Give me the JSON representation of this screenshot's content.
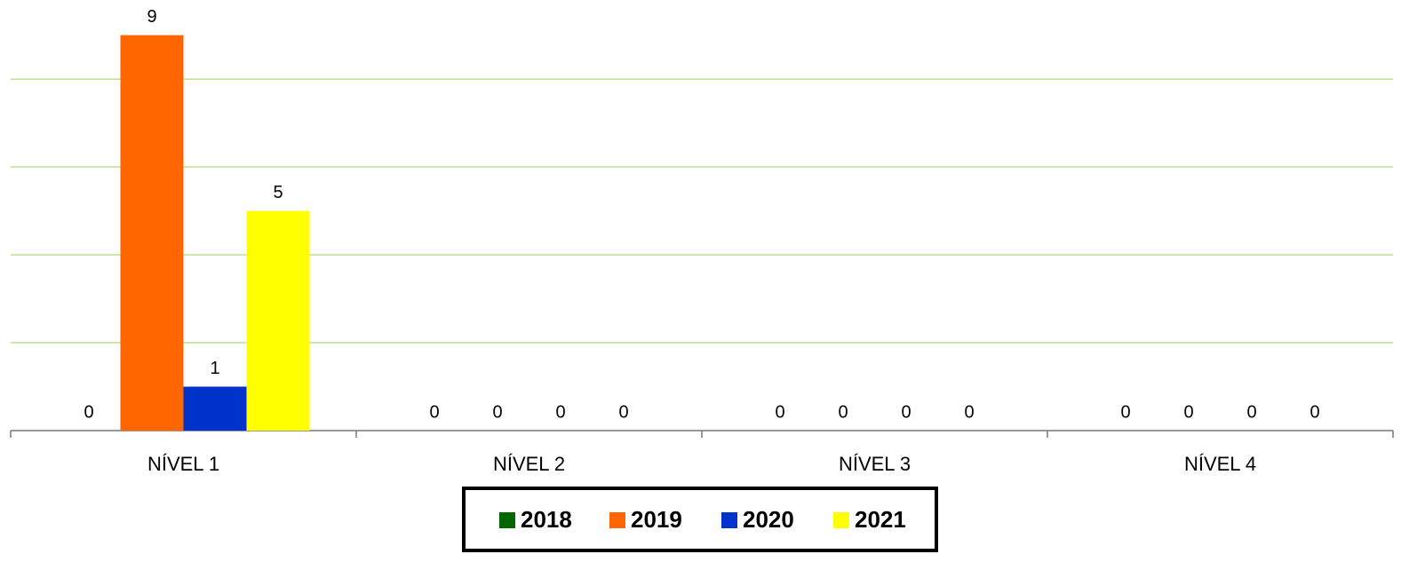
{
  "chart_data": {
    "type": "bar",
    "categories": [
      "NÍVEL 1",
      "NÍVEL 2",
      "NÍVEL 3",
      "NÍVEL 4"
    ],
    "series": [
      {
        "name": "2018",
        "color": "#006600",
        "values": [
          0,
          0,
          0,
          0
        ]
      },
      {
        "name": "2019",
        "color": "#ff6600",
        "values": [
          9,
          0,
          0,
          0
        ]
      },
      {
        "name": "2020",
        "color": "#0033cc",
        "values": [
          1,
          0,
          0,
          0
        ]
      },
      {
        "name": "2021",
        "color": "#ffff00",
        "values": [
          5,
          0,
          0,
          0
        ]
      }
    ],
    "ylim": [
      0,
      9.8
    ],
    "yticks": [
      0,
      2,
      4,
      6,
      8
    ],
    "grid": true,
    "grid_color": "#9bcf5a",
    "legend": "bottom"
  }
}
